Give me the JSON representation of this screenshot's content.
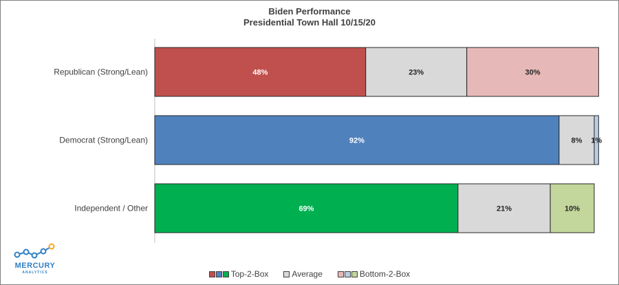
{
  "chart_data": {
    "type": "bar",
    "orientation": "horizontal",
    "stacked": true,
    "title": "Biden Performance",
    "subtitle": "Presidential Town Hall 10/15/20",
    "xlim": [
      0,
      100
    ],
    "grid": false,
    "legend_position": "bottom",
    "categories": [
      "Republican (Strong/Lean)",
      "Democrat (Strong/Lean)",
      "Independent / Other"
    ],
    "series": [
      {
        "name": "Top-2-Box",
        "values": [
          48,
          92,
          69
        ],
        "labels": [
          "48%",
          "92%",
          "69%"
        ],
        "colors": [
          "#c0504d",
          "#4f81bd",
          "#00b050"
        ],
        "label_color": "#ffffff"
      },
      {
        "name": "Average",
        "values": [
          23,
          8,
          21
        ],
        "labels": [
          "23%",
          "8%",
          "21%"
        ],
        "colors": [
          "#d9d9d9",
          "#d9d9d9",
          "#d9d9d9"
        ],
        "label_color": "#262626"
      },
      {
        "name": "Bottom-2-Box",
        "values": [
          30,
          1,
          10
        ],
        "labels": [
          "30%",
          "1%",
          "10%"
        ],
        "colors": [
          "#e6b9b8",
          "#b8cce4",
          "#c3d69b"
        ],
        "label_color": "#262626"
      }
    ]
  },
  "legend": {
    "items": [
      {
        "label": "Top-2-Box",
        "swatches": [
          "#c0504d",
          "#4f81bd",
          "#00b050"
        ]
      },
      {
        "label": "Average",
        "swatches": [
          "#d9d9d9"
        ]
      },
      {
        "label": "Bottom-2-Box",
        "swatches": [
          "#e6b9b8",
          "#b8cce4",
          "#c3d69b"
        ]
      }
    ]
  },
  "logo": {
    "name": "MERCURY",
    "tagline": "ANALYTICS",
    "color": "#2e7fc4",
    "accent": "#f5a623"
  }
}
